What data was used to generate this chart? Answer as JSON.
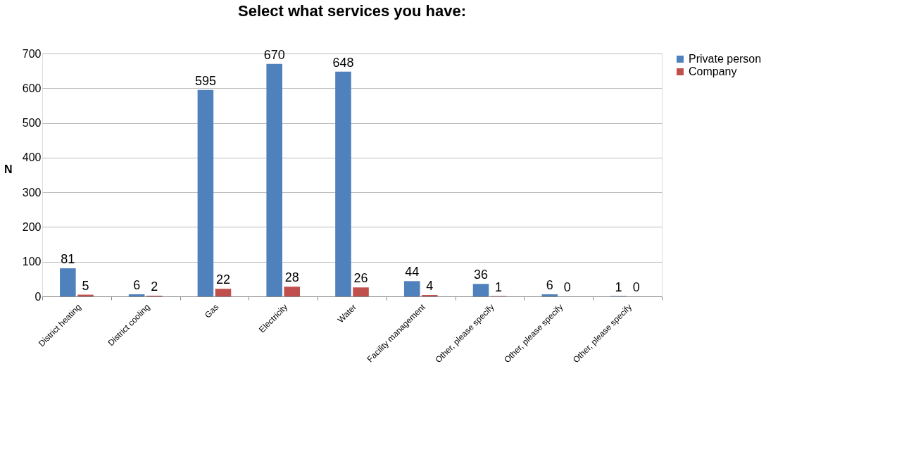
{
  "chart_data": {
    "type": "bar",
    "title": "Select what services you have:",
    "ylabel": "N",
    "categories": [
      "District heating",
      "District cooling",
      "Gas",
      "Electricity",
      "Water",
      "Facility management",
      "Other, please specify",
      "Other, please specify",
      "Other, please specify"
    ],
    "series": [
      {
        "name": "Private person",
        "color": "#4f81bd",
        "values": [
          81,
          6,
          595,
          670,
          648,
          44,
          36,
          6,
          1
        ]
      },
      {
        "name": "Company",
        "color": "#c0504d",
        "values": [
          5,
          2,
          22,
          28,
          26,
          4,
          1,
          0,
          0
        ]
      }
    ],
    "ylim": [
      0,
      700
    ],
    "yticks": [
      0,
      100,
      200,
      300,
      400,
      500,
      600,
      700
    ],
    "grid": "y",
    "legend": "right",
    "data_labels": true
  }
}
